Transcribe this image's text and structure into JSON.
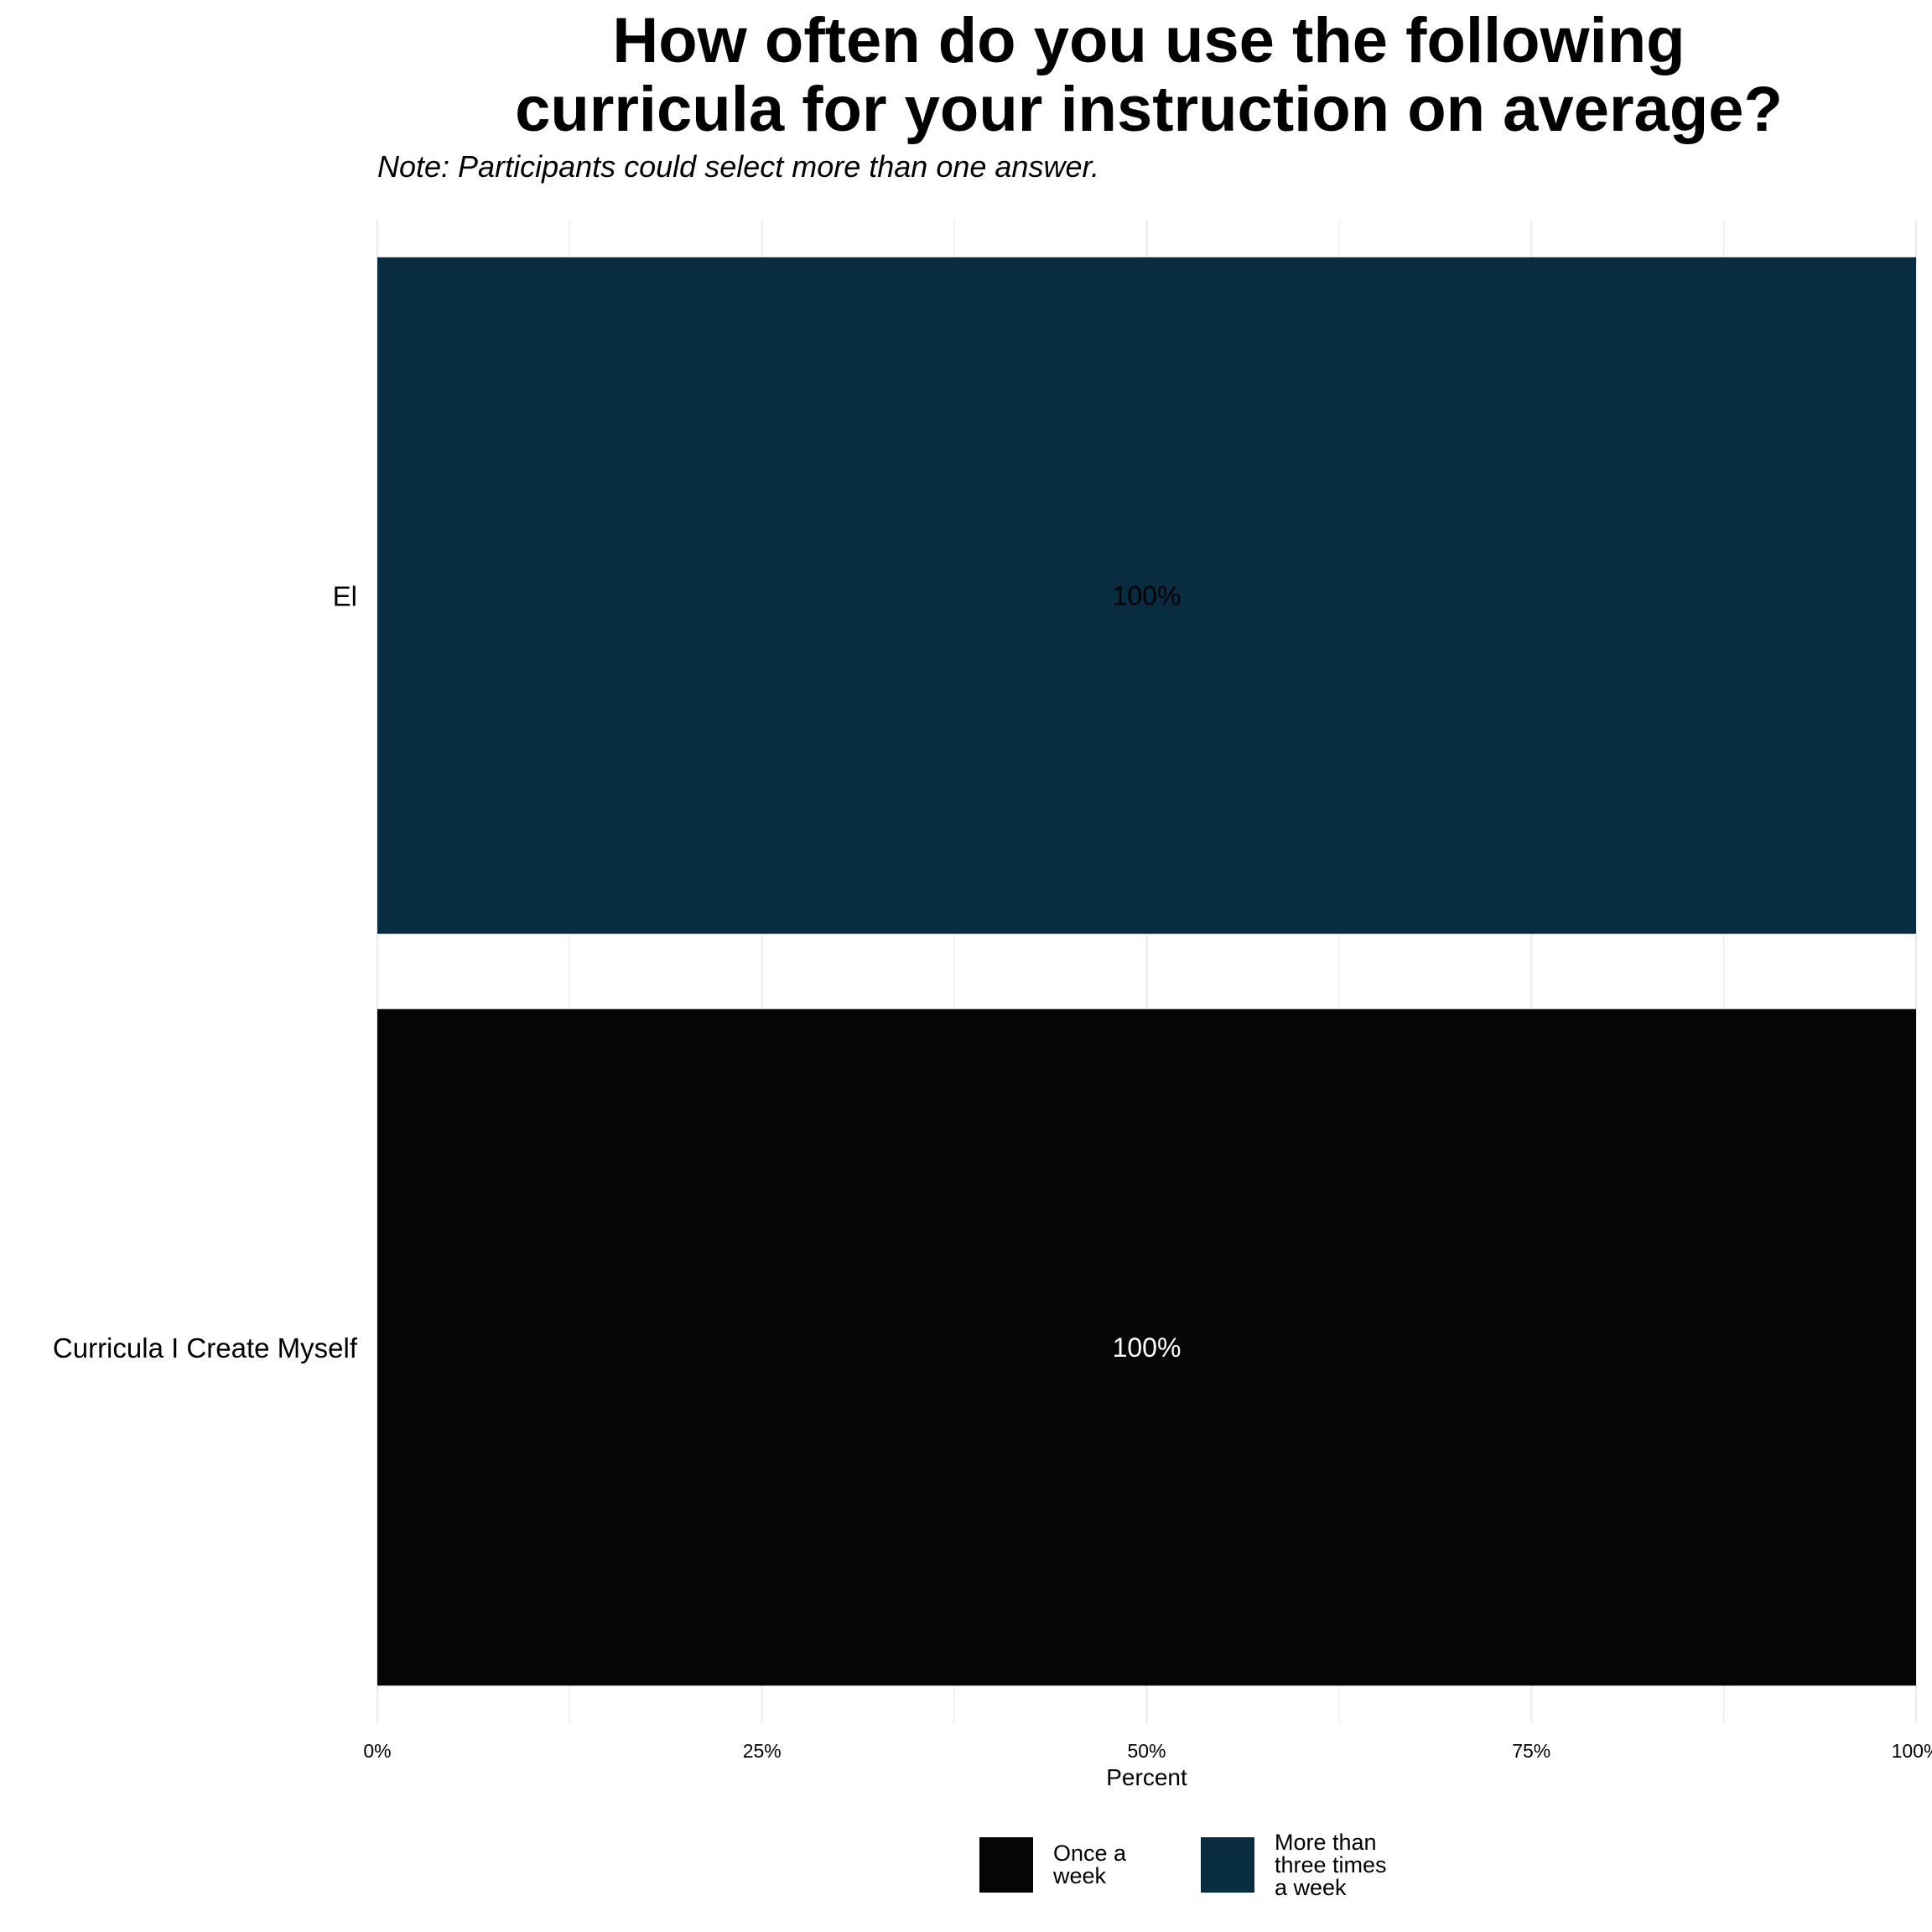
{
  "chart_data": {
    "type": "bar",
    "orientation": "horizontal",
    "stacked": true,
    "title_lines": [
      "How often do you use the following",
      "curricula for your instruction on average?"
    ],
    "subtitle": "Note: Participants could select more than one answer.",
    "categories": [
      "El",
      "Curricula I Create Myself"
    ],
    "series": [
      {
        "name": "Once a week",
        "color": "#050505",
        "label_color": "#ffffff",
        "values": [
          0,
          100
        ]
      },
      {
        "name": "More than three times a week",
        "color": "#082c40",
        "label_color": "#000000",
        "values": [
          100,
          0
        ]
      }
    ],
    "data_labels": [
      "100%",
      "100%"
    ],
    "xlabel": "Percent",
    "ylabel": "",
    "xlim": [
      0,
      100
    ],
    "xticks": [
      0,
      25,
      50,
      75,
      100
    ],
    "xtick_labels": [
      "0%",
      "25%",
      "50%",
      "75%",
      "100%"
    ],
    "grid": true,
    "legend": {
      "position": "bottom",
      "items": [
        {
          "lines": [
            "Once a",
            "week"
          ],
          "color": "#050505"
        },
        {
          "lines": [
            "More than",
            "three times",
            "a week"
          ],
          "color": "#082c40"
        }
      ]
    }
  }
}
